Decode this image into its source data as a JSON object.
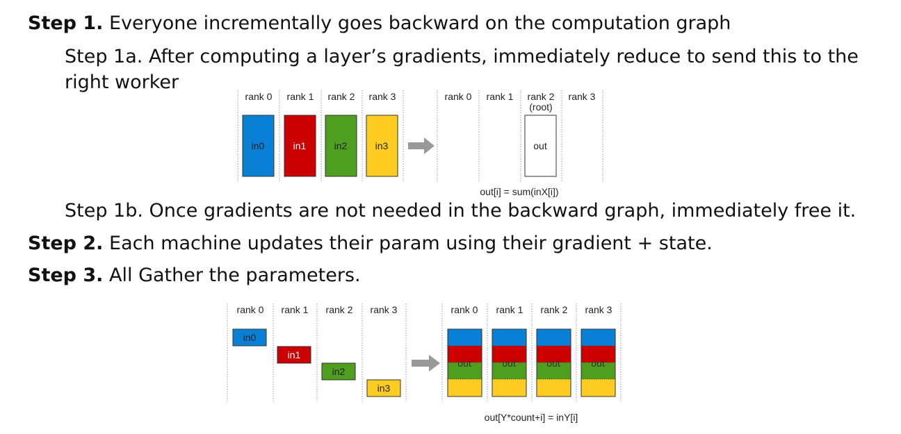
{
  "step1": {
    "bold": "Step 1.",
    "text": " Everyone incrementally goes backward on the computation graph"
  },
  "step1a": {
    "line1": "Step 1a. After computing a layer’s gradients, immediately reduce to send this to the",
    "line2": "right worker"
  },
  "step1b": "Step 1b. Once gradients are not needed in the backward graph, immediately free it.",
  "step2": {
    "bold": "Step 2.",
    "text": " Each machine updates their param using their gradient + state."
  },
  "step3": {
    "bold": "Step 3.",
    "text": " All Gather the parameters."
  },
  "colors": {
    "blue": "#0a7fd6",
    "red": "#cc0000",
    "green": "#4f9e1f",
    "yellow": "#ffcc22",
    "arrow": "#999999"
  },
  "reduce_diagram": {
    "ranks_left": [
      "rank 0",
      "rank 1",
      "rank 2",
      "rank 3"
    ],
    "blocks": [
      "in0",
      "in1",
      "in2",
      "in3"
    ],
    "ranks_right": [
      "rank 0",
      "rank 1",
      "rank 2",
      "rank 3"
    ],
    "root_label": "(root)",
    "out_label": "out",
    "caption": "out[i] = sum(inX[i])"
  },
  "allgather_diagram": {
    "ranks_left": [
      "rank 0",
      "rank 1",
      "rank 2",
      "rank 3"
    ],
    "blocks": [
      "in0",
      "in1",
      "in2",
      "in3"
    ],
    "ranks_right": [
      "rank 0",
      "rank 1",
      "rank 2",
      "rank 3"
    ],
    "out_label": "out",
    "caption": "out[Y*count+i] = inY[i]"
  }
}
